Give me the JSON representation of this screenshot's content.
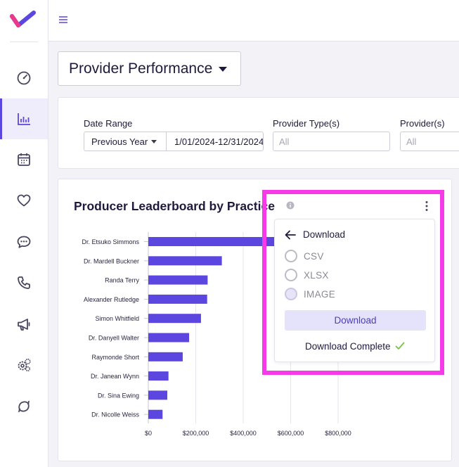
{
  "sidebar": {
    "items": [
      {
        "icon": "dashboard-icon"
      },
      {
        "icon": "bar-chart-icon",
        "active": true
      },
      {
        "icon": "calendar-icon"
      },
      {
        "icon": "heart-icon"
      },
      {
        "icon": "chat-icon"
      },
      {
        "icon": "phone-icon"
      },
      {
        "icon": "megaphone-icon"
      },
      {
        "icon": "settings-gears-icon"
      },
      {
        "icon": "sync-icon"
      }
    ]
  },
  "header": {
    "report_title": "Provider Performance"
  },
  "filters": {
    "date_range_label": "Date Range",
    "date_preset": "Previous Year",
    "date_value": "1/01/2024-12/31/2024",
    "provider_types_label": "Provider Type(s)",
    "provider_types_placeholder": "All",
    "providers_label": "Provider(s)",
    "providers_placeholder": "All"
  },
  "card": {
    "title": "Producer Leaderboard by Practice"
  },
  "chart_data": {
    "type": "bar",
    "orientation": "horizontal",
    "categories": [
      "Dr. Etsuko Simmons",
      "Dr. Mardell Buckner",
      "Randa Terry",
      "Alexander Rutledge",
      "Simon Whitfield",
      "Dr. Danyell Walter",
      "Raymonde Short",
      "Dr. Janean Wynn",
      "Dr. Sina Ewing",
      "Dr. Nicolle Weiss"
    ],
    "values": [
      535000,
      310000,
      250000,
      248000,
      222000,
      172000,
      145000,
      85000,
      80000,
      60000
    ],
    "xlim": [
      0,
      800000
    ],
    "xticks": [
      "$0",
      "$200,000",
      "$400,000",
      "$600,000",
      "$800,000"
    ],
    "xtick_values": [
      0,
      200000,
      400000,
      600000,
      800000
    ],
    "grid": true,
    "bar_color": "#5b47e0"
  },
  "download_menu": {
    "title": "Download",
    "options": [
      {
        "label": "CSV",
        "selected": false
      },
      {
        "label": "XLSX",
        "selected": false
      },
      {
        "label": "IMAGE",
        "selected": true
      }
    ],
    "button_label": "Download",
    "status": "Download Complete"
  },
  "colors": {
    "accent": "#5b47e0",
    "highlight": "#f53ae8",
    "success": "#7bc043"
  }
}
